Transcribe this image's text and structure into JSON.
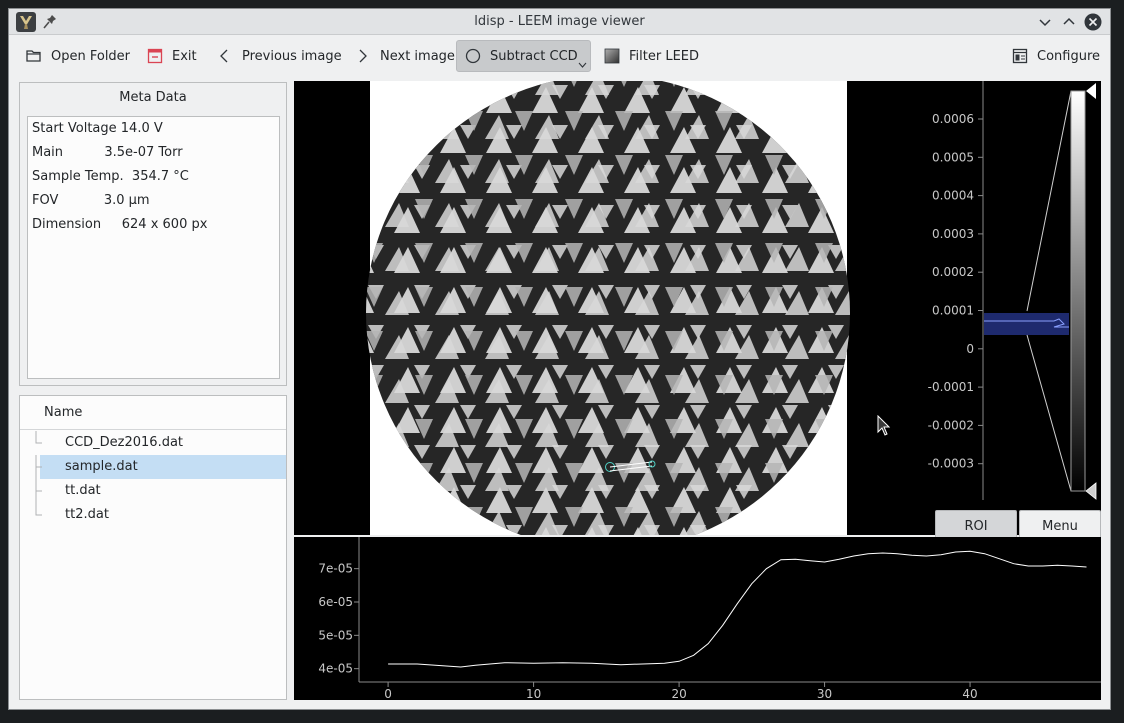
{
  "window": {
    "title": "ldisp - LEEM image viewer"
  },
  "toolbar": {
    "open_folder": "Open Folder",
    "exit": "Exit",
    "previous_image": "Previous image",
    "next_image": "Next image",
    "subtract_ccd": "Subtract CCD",
    "filter_leed": "Filter LEED",
    "configure": "Configure"
  },
  "meta": {
    "title": "Meta Data",
    "lines": [
      "Start Voltage 14.0 V",
      "Main          3.5e-07 Torr",
      "Sample Temp.  354.7 °C",
      "FOV           3.0 µm",
      "Dimension     624 x 600 px"
    ]
  },
  "files": {
    "header": "Name",
    "items": [
      "CCD_Dez2016.dat",
      "sample.dat",
      "tt.dat",
      "tt2.dat"
    ],
    "selected_index": 1
  },
  "histogram": {
    "ticks": [
      "0.0006",
      "0.0005",
      "0.0004",
      "0.0003",
      "0.0002",
      "0.0001",
      "0",
      "-0.0001",
      "-0.0002",
      "-0.0003"
    ]
  },
  "buttons": {
    "roi": "ROI",
    "menu": "Menu"
  },
  "chart_data": {
    "type": "line",
    "title": "",
    "xlabel": "",
    "ylabel": "",
    "xlim": [
      -2,
      49
    ],
    "ylim": [
      3.6e-05,
      7.8e-05
    ],
    "x_ticks": [
      "0",
      "10",
      "20",
      "30",
      "40"
    ],
    "y_ticks": [
      "4e-05",
      "5e-05",
      "6e-05",
      "7e-05"
    ],
    "series": [
      {
        "x": [
          0,
          2,
          4,
          5,
          6,
          8,
          10,
          12,
          14,
          16,
          18,
          19,
          20,
          21,
          22,
          23,
          24,
          25,
          26,
          27,
          28,
          29,
          30,
          31,
          32,
          33,
          34,
          35,
          36,
          37,
          38,
          39,
          40,
          41,
          42,
          43,
          44,
          45,
          46,
          47,
          48
        ],
        "values": [
          4.14e-05,
          4.14e-05,
          4.08e-05,
          4.05e-05,
          4.1e-05,
          4.18e-05,
          4.16e-05,
          4.18e-05,
          4.16e-05,
          4.12e-05,
          4.15e-05,
          4.16e-05,
          4.22e-05,
          4.4e-05,
          4.75e-05,
          5.3e-05,
          5.95e-05,
          6.55e-05,
          7e-05,
          7.27e-05,
          7.28e-05,
          7.24e-05,
          7.2e-05,
          7.28e-05,
          7.38e-05,
          7.45e-05,
          7.47e-05,
          7.45e-05,
          7.4e-05,
          7.38e-05,
          7.42e-05,
          7.5e-05,
          7.52e-05,
          7.45e-05,
          7.3e-05,
          7.15e-05,
          7.08e-05,
          7.08e-05,
          7.1e-05,
          7.08e-05,
          7.05e-05
        ]
      }
    ]
  }
}
